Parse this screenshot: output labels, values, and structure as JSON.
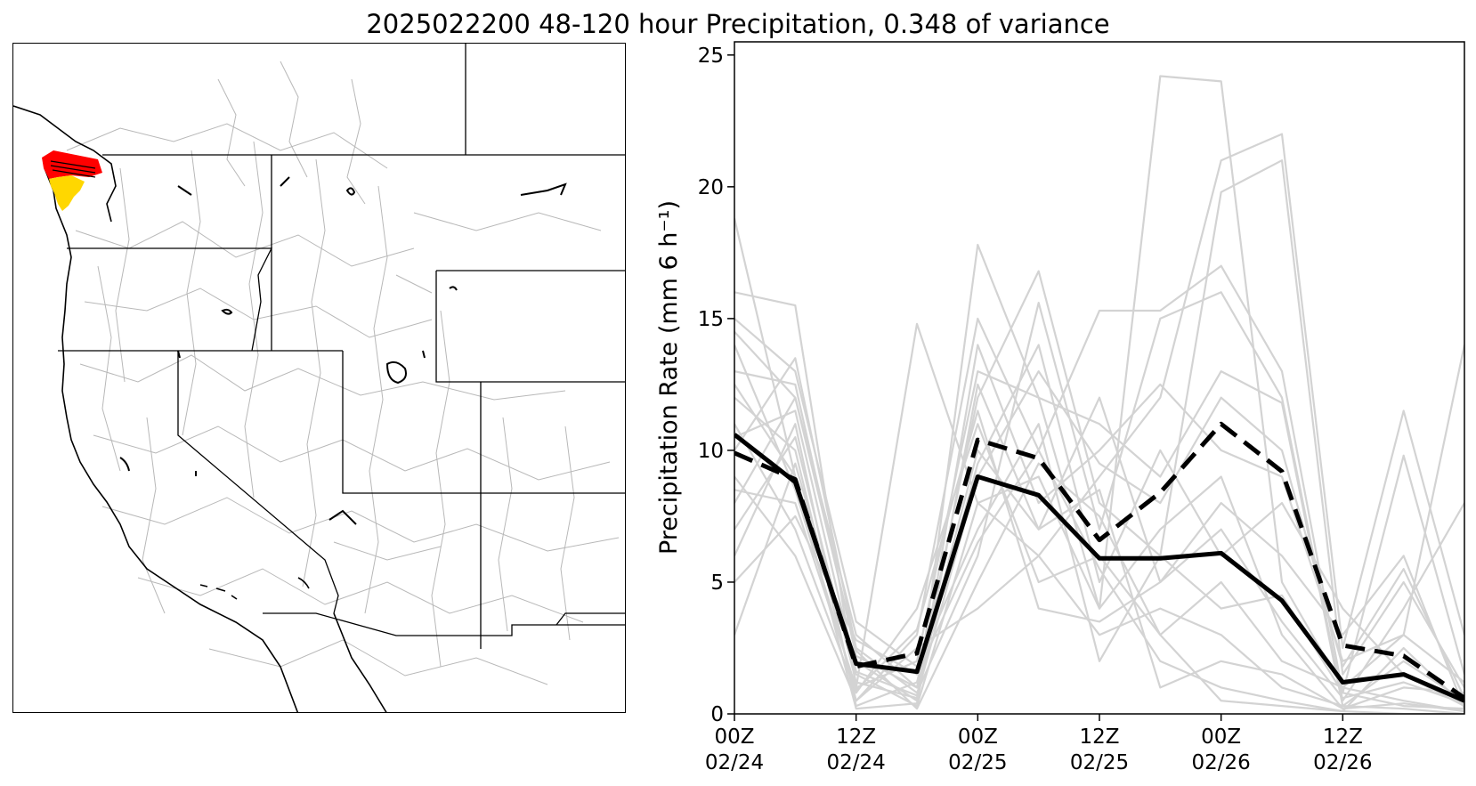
{
  "title": "2025022200 48-120 hour Precipitation, 0.348 of variance",
  "colors": {
    "background": "#ffffff",
    "member_line": "#d3d3d3",
    "mean_line": "#000000",
    "highlight_high": "#ff0000",
    "highlight_mid": "#ffd700",
    "basin_outline": "#b8b8b8"
  },
  "map": {
    "region": "western-us-basins",
    "highlight_basins": [
      "red",
      "yellow"
    ]
  },
  "chart_data": {
    "type": "line",
    "title": "2025022200 48-120 hour Precipitation, 0.348 of variance",
    "xlabel": "",
    "ylabel": "Precipitation Rate (mm 6 h⁻¹)",
    "ylim": [
      0,
      25.5
    ],
    "xlim": [
      0,
      18
    ],
    "yticks": [
      0,
      5,
      10,
      15,
      20,
      25
    ],
    "xticks": [
      {
        "x": 0,
        "line1": "00Z",
        "line2": "02/24"
      },
      {
        "x": 3,
        "line1": "12Z",
        "line2": "02/24"
      },
      {
        "x": 6,
        "line1": "00Z",
        "line2": "02/25"
      },
      {
        "x": 9,
        "line1": "12Z",
        "line2": "02/25"
      },
      {
        "x": 12,
        "line1": "00Z",
        "line2": "02/26"
      },
      {
        "x": 15,
        "line1": "12Z",
        "line2": "02/26"
      }
    ],
    "x": [
      0,
      1.5,
      3,
      4.5,
      6,
      7.5,
      9,
      10.5,
      12,
      13.5,
      15,
      16.5,
      18
    ],
    "series": [
      {
        "name": "solid-mean",
        "style": "solid",
        "values": [
          10.6,
          8.8,
          1.9,
          1.6,
          9.0,
          8.3,
          5.9,
          5.9,
          6.1,
          4.3,
          1.2,
          1.5,
          0.5
        ]
      },
      {
        "name": "dashed-mean",
        "style": "dashed",
        "values": [
          9.9,
          8.9,
          1.8,
          2.3,
          10.4,
          9.7,
          6.6,
          8.4,
          11.0,
          9.2,
          2.6,
          2.2,
          0.6
        ]
      }
    ],
    "members": [
      [
        18.8,
        9.0,
        2.0,
        0.5,
        17.8,
        12.0,
        4.0,
        24.2,
        24.0,
        5.0,
        1.0,
        3.0,
        14.0
      ],
      [
        16.0,
        15.5,
        1.0,
        14.8,
        8.0,
        6.0,
        9.0,
        12.0,
        21.0,
        22.0,
        2.5,
        11.5,
        3.0
      ],
      [
        14.5,
        12.0,
        3.0,
        1.0,
        12.0,
        16.8,
        8.0,
        6.0,
        19.8,
        21.0,
        1.5,
        5.0,
        1.0
      ],
      [
        12.0,
        10.0,
        0.5,
        3.0,
        15.0,
        10.0,
        15.3,
        15.3,
        17.0,
        13.0,
        0.8,
        9.8,
        1.5
      ],
      [
        10.0,
        13.5,
        2.5,
        0.8,
        6.0,
        15.6,
        7.0,
        15.0,
        16.0,
        12.0,
        0.5,
        4.0,
        8.0
      ],
      [
        8.5,
        8.0,
        1.0,
        2.0,
        13.0,
        12.0,
        11.0,
        9.0,
        13.0,
        11.8,
        0.3,
        2.0,
        0.5
      ],
      [
        6.0,
        11.0,
        0.3,
        1.2,
        10.0,
        7.0,
        12.0,
        5.0,
        8.0,
        6.0,
        3.0,
        6.0,
        0.2
      ],
      [
        3.0,
        9.5,
        1.5,
        0.3,
        8.0,
        9.0,
        4.0,
        7.0,
        9.0,
        3.0,
        0.2,
        1.0,
        0.8
      ],
      [
        11.0,
        7.0,
        0.8,
        4.0,
        11.0,
        5.0,
        6.0,
        3.0,
        5.0,
        2.0,
        1.0,
        0.5,
        0.1
      ],
      [
        13.0,
        12.5,
        2.2,
        1.0,
        9.5,
        14.0,
        5.0,
        10.0,
        6.0,
        8.0,
        4.0,
        1.5,
        0.3
      ],
      [
        9.0,
        6.0,
        0.5,
        2.5,
        4.0,
        6.0,
        3.0,
        4.0,
        3.0,
        1.0,
        0.3,
        0.2,
        0.0
      ],
      [
        7.0,
        10.5,
        1.2,
        0.6,
        14.0,
        8.0,
        10.0,
        12.5,
        10.0,
        9.0,
        2.0,
        3.0,
        1.2
      ],
      [
        15.0,
        13.0,
        3.5,
        1.8,
        7.0,
        11.0,
        2.0,
        6.0,
        4.0,
        4.5,
        0.8,
        0.3,
        0.2
      ],
      [
        12.5,
        9.0,
        0.2,
        0.4,
        12.5,
        7.0,
        8.5,
        1.0,
        2.0,
        1.5,
        0.2,
        0.4,
        0.1
      ],
      [
        5.0,
        7.5,
        2.8,
        1.5,
        6.5,
        10.0,
        5.5,
        2.0,
        1.0,
        0.5,
        0.1,
        2.5,
        0.3
      ],
      [
        10.5,
        11.5,
        1.6,
        0.7,
        9.0,
        13.0,
        9.5,
        8.0,
        12.0,
        10.0,
        1.8,
        5.5,
        0.6
      ],
      [
        14.0,
        8.5,
        0.9,
        3.2,
        11.5,
        4.0,
        3.5,
        5.0,
        7.0,
        3.5,
        0.6,
        1.2,
        0.4
      ],
      [
        8.0,
        12.0,
        2.4,
        0.2,
        5.0,
        9.5,
        7.5,
        3.0,
        0.5,
        0.3,
        0.1,
        0.0,
        0.0
      ]
    ]
  }
}
